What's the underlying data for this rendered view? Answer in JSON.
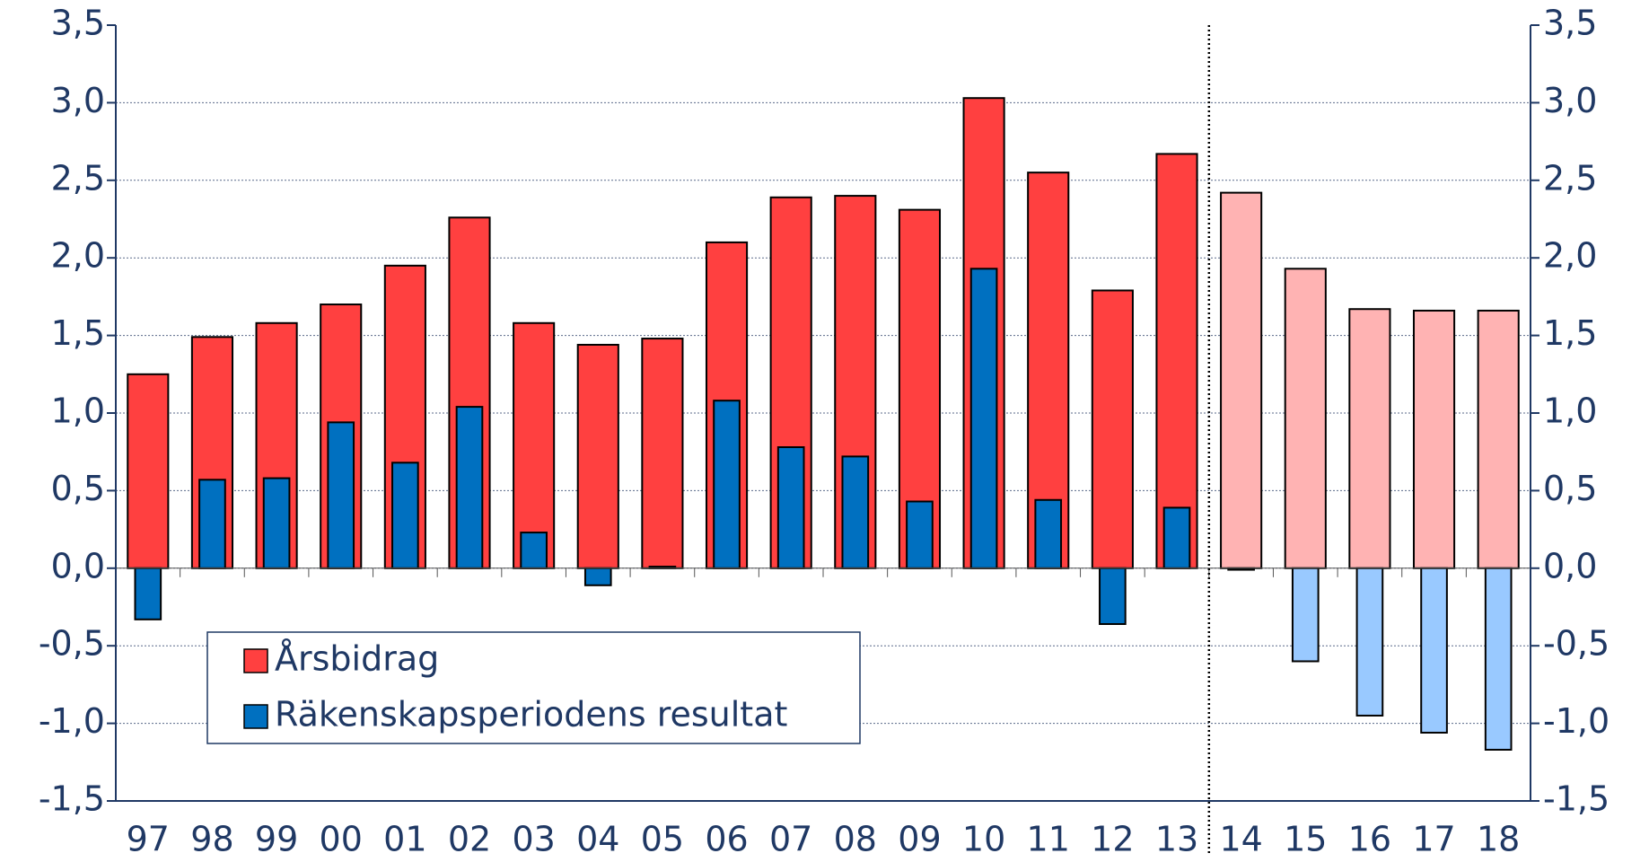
{
  "chart_data": {
    "type": "bar",
    "categories": [
      "97",
      "98",
      "99",
      "00",
      "01",
      "02",
      "03",
      "04",
      "05",
      "06",
      "07",
      "08",
      "09",
      "10",
      "11",
      "12",
      "13",
      "14",
      "15",
      "16",
      "17",
      "18"
    ],
    "series": [
      {
        "name": "Årsbidrag",
        "color": "#ff4040",
        "colors": [
          "#ff4040",
          "#ff4040",
          "#ff4040",
          "#ff4040",
          "#ff4040",
          "#ff4040",
          "#ff4040",
          "#ff4040",
          "#ff4040",
          "#ff4040",
          "#ff4040",
          "#ff4040",
          "#ff4040",
          "#ff4040",
          "#ff4040",
          "#ff4040",
          "#ff4040",
          "#ffb3b3",
          "#ffb3b3",
          "#ffb3b3",
          "#ffb3b3",
          "#ffb3b3"
        ],
        "values": [
          1.25,
          1.49,
          1.58,
          1.7,
          1.95,
          2.26,
          1.58,
          1.44,
          1.48,
          2.1,
          2.39,
          2.4,
          2.31,
          3.03,
          2.55,
          1.79,
          2.67,
          2.42,
          1.93,
          1.67,
          1.66,
          1.66
        ]
      },
      {
        "name": "Räkenskapsperiodens resultat",
        "color": "#0070c0",
        "colors": [
          "#0070c0",
          "#0070c0",
          "#0070c0",
          "#0070c0",
          "#0070c0",
          "#0070c0",
          "#0070c0",
          "#0070c0",
          "#0070c0",
          "#0070c0",
          "#0070c0",
          "#0070c0",
          "#0070c0",
          "#0070c0",
          "#0070c0",
          "#0070c0",
          "#0070c0",
          "#99c9ff",
          "#99c9ff",
          "#99c9ff",
          "#99c9ff",
          "#99c9ff"
        ],
        "values": [
          -0.33,
          0.57,
          0.58,
          0.94,
          0.68,
          1.04,
          0.23,
          -0.11,
          0.01,
          1.08,
          0.78,
          0.72,
          0.43,
          1.93,
          0.44,
          -0.36,
          0.39,
          -0.01,
          -0.6,
          -0.95,
          -1.06,
          -1.17
        ]
      }
    ],
    "ylim": [
      -1.5,
      3.5
    ],
    "yticks": [
      {
        "value": -1.5,
        "label": "-1,5"
      },
      {
        "value": -1,
        "label": "-1,0"
      },
      {
        "value": -0.5,
        "label": "-0,5"
      },
      {
        "value": 0,
        "label": "0,0"
      },
      {
        "value": 0.5,
        "label": "0,5"
      },
      {
        "value": 1,
        "label": "1,0"
      },
      {
        "value": 1.5,
        "label": "1,5"
      },
      {
        "value": 2,
        "label": "2,0"
      },
      {
        "value": 2.5,
        "label": "2,5"
      },
      {
        "value": 3,
        "label": "3,0"
      },
      {
        "value": 3.5,
        "label": "3,5"
      }
    ],
    "y2lim": [
      -1.5,
      3.5
    ],
    "y2ticks": [
      {
        "value": -1.5,
        "label": "-1,5"
      },
      {
        "value": -1,
        "label": "-1,0"
      },
      {
        "value": -0.5,
        "label": "-0,5"
      },
      {
        "value": 0,
        "label": "0,0"
      },
      {
        "value": 0.5,
        "label": "0,5"
      },
      {
        "value": 1,
        "label": "1,0"
      },
      {
        "value": 1.5,
        "label": "1,5"
      },
      {
        "value": 2,
        "label": "2,0"
      },
      {
        "value": 2.5,
        "label": "2,5"
      },
      {
        "value": 3,
        "label": "3,0"
      },
      {
        "value": 3.5,
        "label": "3,5"
      }
    ],
    "grid": true,
    "legend": "lower left"
  }
}
